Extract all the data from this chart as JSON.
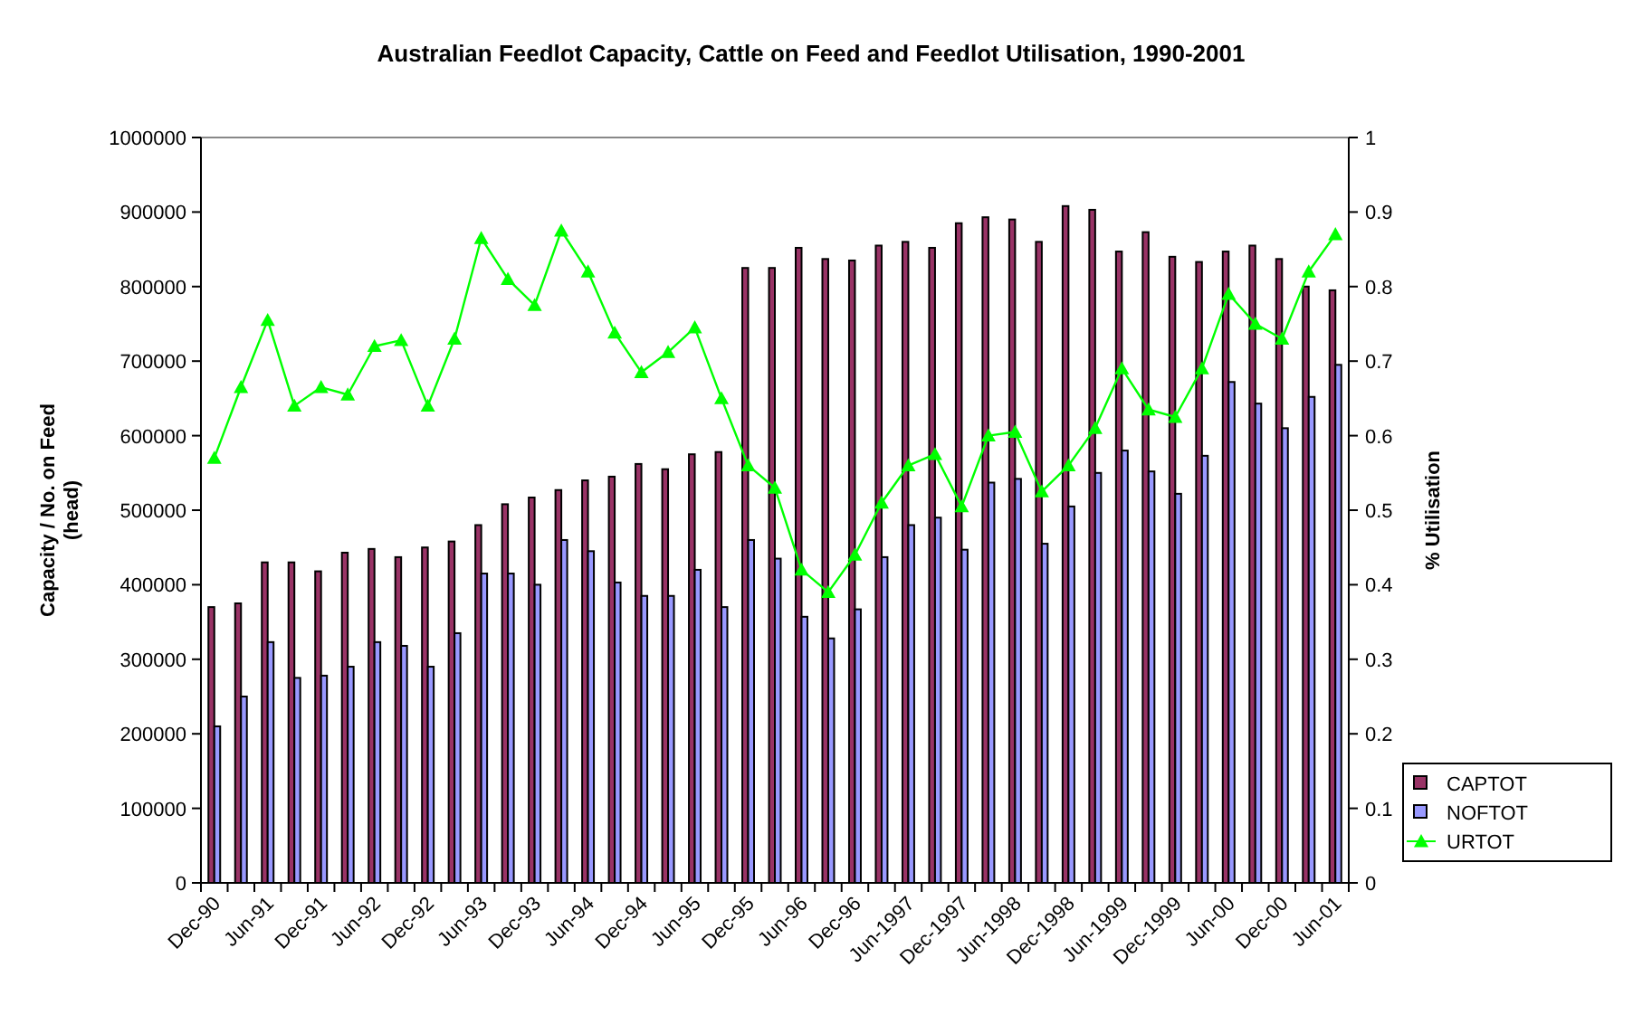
{
  "chart_data": {
    "type": "bar",
    "title": "Australian Feedlot Capacity, Cattle on Feed and Feedlot Utilisation, 1990-2001",
    "ylabel": "Capacity / No. on Feed (head)",
    "y2label": "% Utilisation",
    "categories": [
      "Dec-90",
      null,
      "Jun-91",
      null,
      "Dec-91",
      null,
      "Jun-92",
      null,
      "Dec-92",
      null,
      "Jun-93",
      null,
      "Dec-93",
      null,
      "Jun-94",
      null,
      "Dec-94",
      null,
      "Jun-95",
      null,
      "Dec-95",
      null,
      "Jun-96",
      null,
      "Dec-96",
      null,
      "Jun-1997",
      null,
      "Dec-1997",
      null,
      "Jun-1998",
      null,
      "Dec-1998",
      null,
      "Jun-1999",
      null,
      "Dec-1999",
      null,
      "Jun-00",
      null,
      "Dec-00",
      null,
      "Jun-01"
    ],
    "series": [
      {
        "name": "CAPTOT",
        "color": "#993366",
        "values": [
          370000,
          375000,
          430000,
          430000,
          418000,
          443000,
          448000,
          437000,
          450000,
          458000,
          480000,
          508000,
          517000,
          527000,
          540000,
          545000,
          562000,
          555000,
          575000,
          578000,
          825000,
          825000,
          852000,
          837000,
          835000,
          855000,
          860000,
          852000,
          885000,
          893000,
          890000,
          860000,
          908000,
          903000,
          847000,
          873000,
          840000,
          833000,
          847000,
          855000,
          837000,
          800000,
          795000
        ]
      },
      {
        "name": "NOFTOT",
        "color": "#9999ff",
        "values": [
          210000,
          250000,
          323000,
          275000,
          278000,
          290000,
          323000,
          318000,
          290000,
          335000,
          415000,
          415000,
          400000,
          460000,
          445000,
          403000,
          385000,
          385000,
          420000,
          370000,
          460000,
          435000,
          357000,
          328000,
          367000,
          437000,
          480000,
          490000,
          447000,
          537000,
          542000,
          455000,
          505000,
          550000,
          580000,
          552000,
          522000,
          573000,
          672000,
          643000,
          610000,
          652000,
          695000
        ]
      },
      {
        "name": "URTOT",
        "type": "line",
        "axis": "y2",
        "color": "#00ff00",
        "marker": "triangle",
        "values": [
          0.57,
          0.665,
          0.755,
          0.64,
          0.665,
          0.655,
          0.72,
          0.728,
          0.64,
          0.73,
          0.865,
          0.81,
          0.775,
          0.875,
          0.82,
          0.738,
          0.685,
          0.712,
          0.745,
          0.65,
          0.56,
          0.53,
          0.42,
          0.39,
          0.44,
          0.51,
          0.56,
          0.575,
          0.505,
          0.6,
          0.605,
          0.525,
          0.56,
          0.61,
          0.69,
          0.635,
          0.625,
          0.69,
          0.79,
          0.75,
          0.73,
          0.82,
          0.87
        ]
      }
    ],
    "ylim": [
      0,
      1000000
    ],
    "yticks": [
      0,
      100000,
      200000,
      300000,
      400000,
      500000,
      600000,
      700000,
      800000,
      900000,
      1000000
    ],
    "y2lim": [
      0,
      1
    ],
    "y2ticks": [
      0,
      0.1,
      0.2,
      0.3,
      0.4,
      0.5,
      0.6,
      0.7,
      0.8,
      0.9,
      1
    ],
    "legend": "right"
  }
}
